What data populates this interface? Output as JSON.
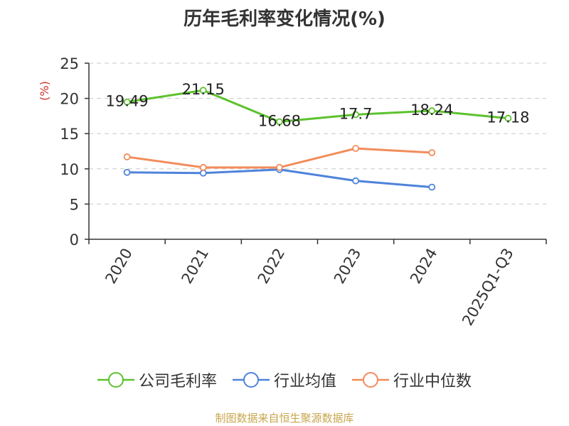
{
  "title": "历年毛利率变化情况(%)",
  "source": "制图数据来自恒生聚源数据库",
  "chart_data": {
    "type": "line",
    "title": "历年毛利率变化情况(%)",
    "ylabel": "(%)",
    "ylim": [
      0,
      25
    ],
    "yticks": [
      0,
      5,
      10,
      15,
      20,
      25
    ],
    "categories": [
      "2020",
      "2021",
      "2022",
      "2023",
      "2024",
      "2025Q1-Q3"
    ],
    "grid": true,
    "legend_position": "bottom",
    "series": [
      {
        "name": "公司毛利率",
        "color": "#5cc22e",
        "values": [
          19.49,
          21.15,
          16.68,
          17.7,
          18.24,
          17.18
        ],
        "show_labels": true
      },
      {
        "name": "行业均值",
        "color": "#4e83db",
        "values": [
          9.5,
          9.4,
          9.9,
          8.3,
          7.4,
          null
        ],
        "show_labels": false
      },
      {
        "name": "行业中位数",
        "color": "#f28c5a",
        "values": [
          11.7,
          10.2,
          10.2,
          12.9,
          12.3,
          null
        ],
        "show_labels": false
      }
    ]
  }
}
